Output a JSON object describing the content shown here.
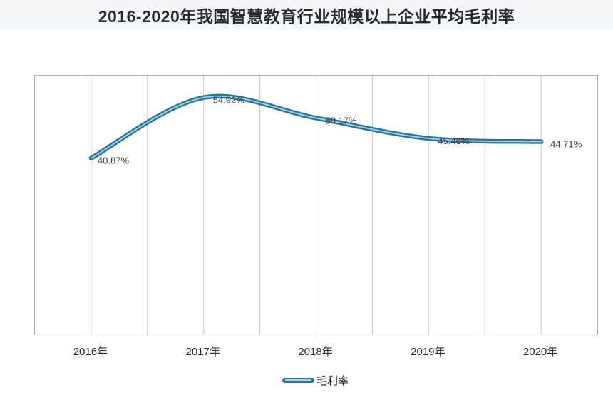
{
  "page": {
    "title": "2016-2020年我国智慧教育行业规模以上企业平均毛利率"
  },
  "chart_data": {
    "type": "line",
    "smooth": true,
    "title": "2016-2020年我国智慧教育行业规模以上企业平均毛利率",
    "categories": [
      "2016年",
      "2017年",
      "2018年",
      "2019年",
      "2020年"
    ],
    "series": [
      {
        "name": "毛利率",
        "values": [
          40.87,
          54.92,
          50.17,
          45.46,
          44.71
        ]
      }
    ],
    "point_labels": [
      "40.87%",
      "54.92%",
      "50.17%",
      "45.46%",
      "44.71%"
    ],
    "xlabel": "",
    "ylabel": "",
    "ylim": [
      0,
      60
    ],
    "y_axis_labels_visible": false,
    "grid": "vertical-only",
    "vertical_gridline_count": 9,
    "legend_position": "bottom-center",
    "legend": [
      "毛利率"
    ],
    "colors": {
      "line": "#2a769b",
      "line_highlight": "#a8d2e3",
      "gridline": "#c6c9cc",
      "plot_border": "#a9adb1",
      "title_bg": "#f5f8fa",
      "title_text": "#262a31",
      "data_label_text": "#3b3b3b",
      "axis_label_text": "#2e2e2e"
    }
  },
  "legend": {
    "label": "毛利率"
  }
}
